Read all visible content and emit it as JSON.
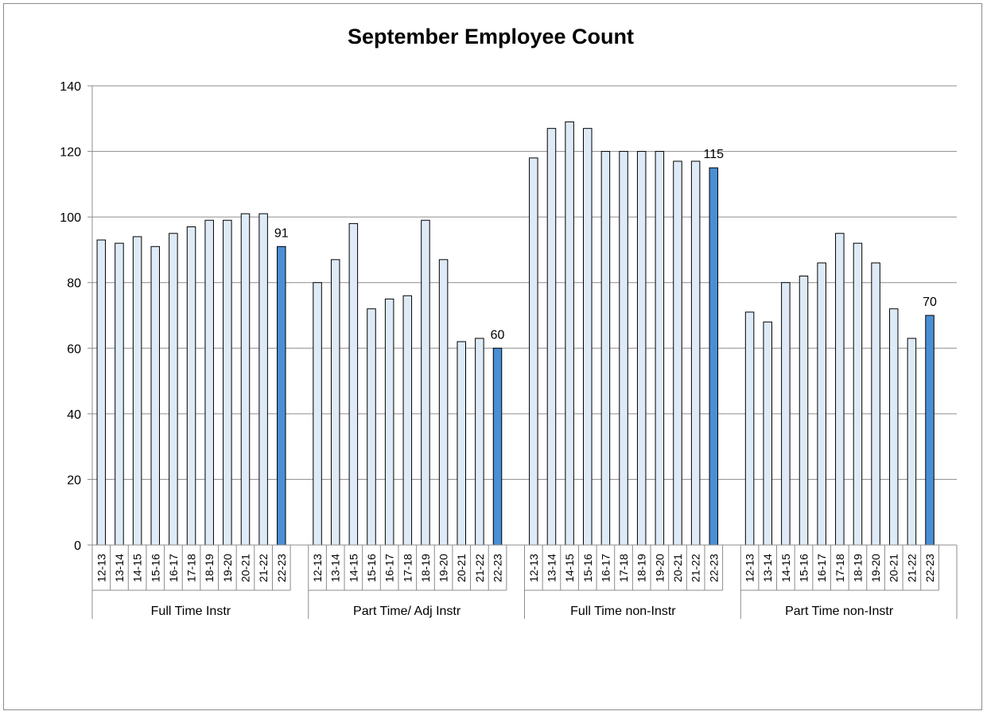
{
  "chart_data": {
    "type": "bar",
    "title": "September Employee Count",
    "xlabel": "",
    "ylabel": "",
    "ylim": [
      0,
      140
    ],
    "yticks": [
      0,
      20,
      40,
      60,
      80,
      100,
      120,
      140
    ],
    "grid": true,
    "legend": "none",
    "colors": {
      "normal_fill": "#deebf7",
      "highlight_fill": "#4a8fd4",
      "bar_stroke": "#000000",
      "grid": "#8c8c8c"
    },
    "groups": [
      {
        "name": "Full Time Instr",
        "categories": [
          "12-13",
          "13-14",
          "14-15",
          "15-16",
          "16-17",
          "17-18",
          "18-19",
          "19-20",
          "20-21",
          "21-22",
          "22-23"
        ],
        "values": [
          93,
          92,
          94,
          91,
          95,
          97,
          99,
          99,
          101,
          101,
          91
        ],
        "data_label": "91"
      },
      {
        "name": "Part Time/ Adj Instr",
        "categories": [
          "12-13",
          "13-14",
          "14-15",
          "15-16",
          "16-17",
          "17-18",
          "18-19",
          "19-20",
          "20-21",
          "21-22",
          "22-23"
        ],
        "values": [
          80,
          87,
          98,
          72,
          75,
          76,
          99,
          87,
          62,
          63,
          60
        ],
        "data_label": "60"
      },
      {
        "name": "Full Time non-Instr",
        "categories": [
          "12-13",
          "13-14",
          "14-15",
          "15-16",
          "16-17",
          "17-18",
          "18-19",
          "19-20",
          "20-21",
          "21-22",
          "22-23"
        ],
        "values": [
          118,
          127,
          129,
          127,
          120,
          120,
          120,
          120,
          117,
          117,
          115
        ],
        "data_label": "115"
      },
      {
        "name": "Part Time non-Instr",
        "categories": [
          "12-13",
          "13-14",
          "14-15",
          "15-16",
          "16-17",
          "17-18",
          "18-19",
          "19-20",
          "20-21",
          "21-22",
          "22-23"
        ],
        "values": [
          71,
          68,
          80,
          82,
          86,
          95,
          92,
          86,
          72,
          63,
          70
        ],
        "data_label": "70"
      }
    ]
  }
}
